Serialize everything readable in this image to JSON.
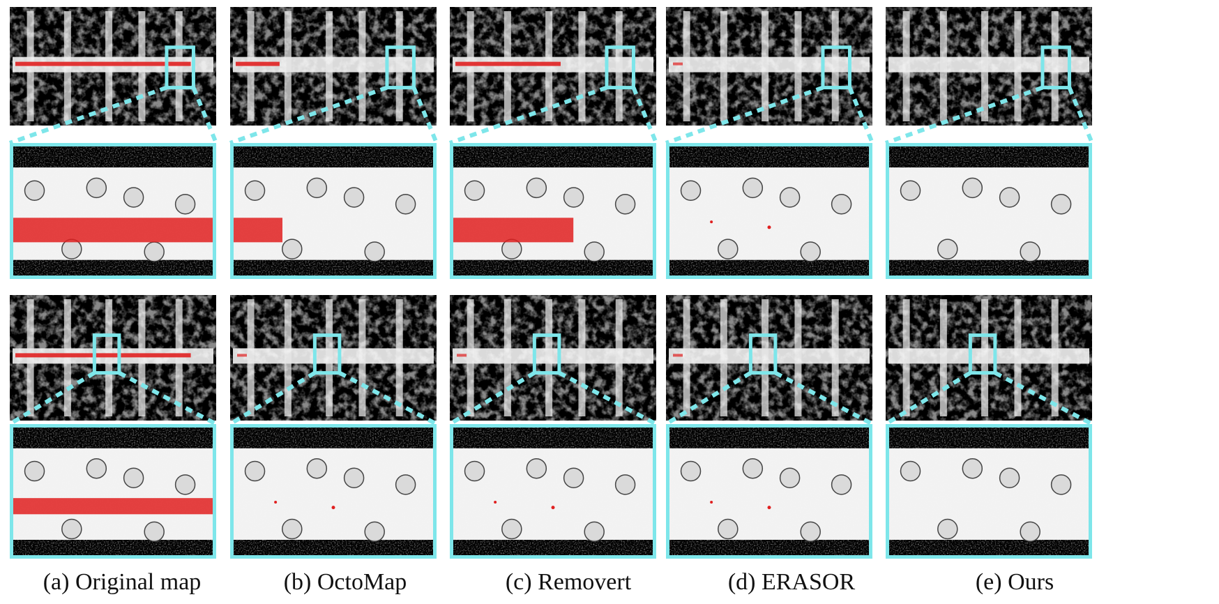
{
  "figure": {
    "columns": [
      {
        "id": "a",
        "caption": "(a) Original map",
        "red_top": "heavy",
        "red_bottom": "heavy"
      },
      {
        "id": "b",
        "caption": "(b) OctoMap",
        "red_top": "light",
        "red_bottom": "trace"
      },
      {
        "id": "c",
        "caption": "(c) Removert",
        "red_top": "medium",
        "red_bottom": "trace"
      },
      {
        "id": "d",
        "caption": "(d) ERASOR",
        "red_top": "trace",
        "red_bottom": "trace"
      },
      {
        "id": "e",
        "caption": "(e) Ours",
        "red_top": "none",
        "red_bottom": "none"
      }
    ],
    "colors": {
      "background": "#000000",
      "map_points": "#e6e6e6",
      "dynamic_points": "#e02020",
      "highlight_box": "#7ee6ea"
    }
  }
}
